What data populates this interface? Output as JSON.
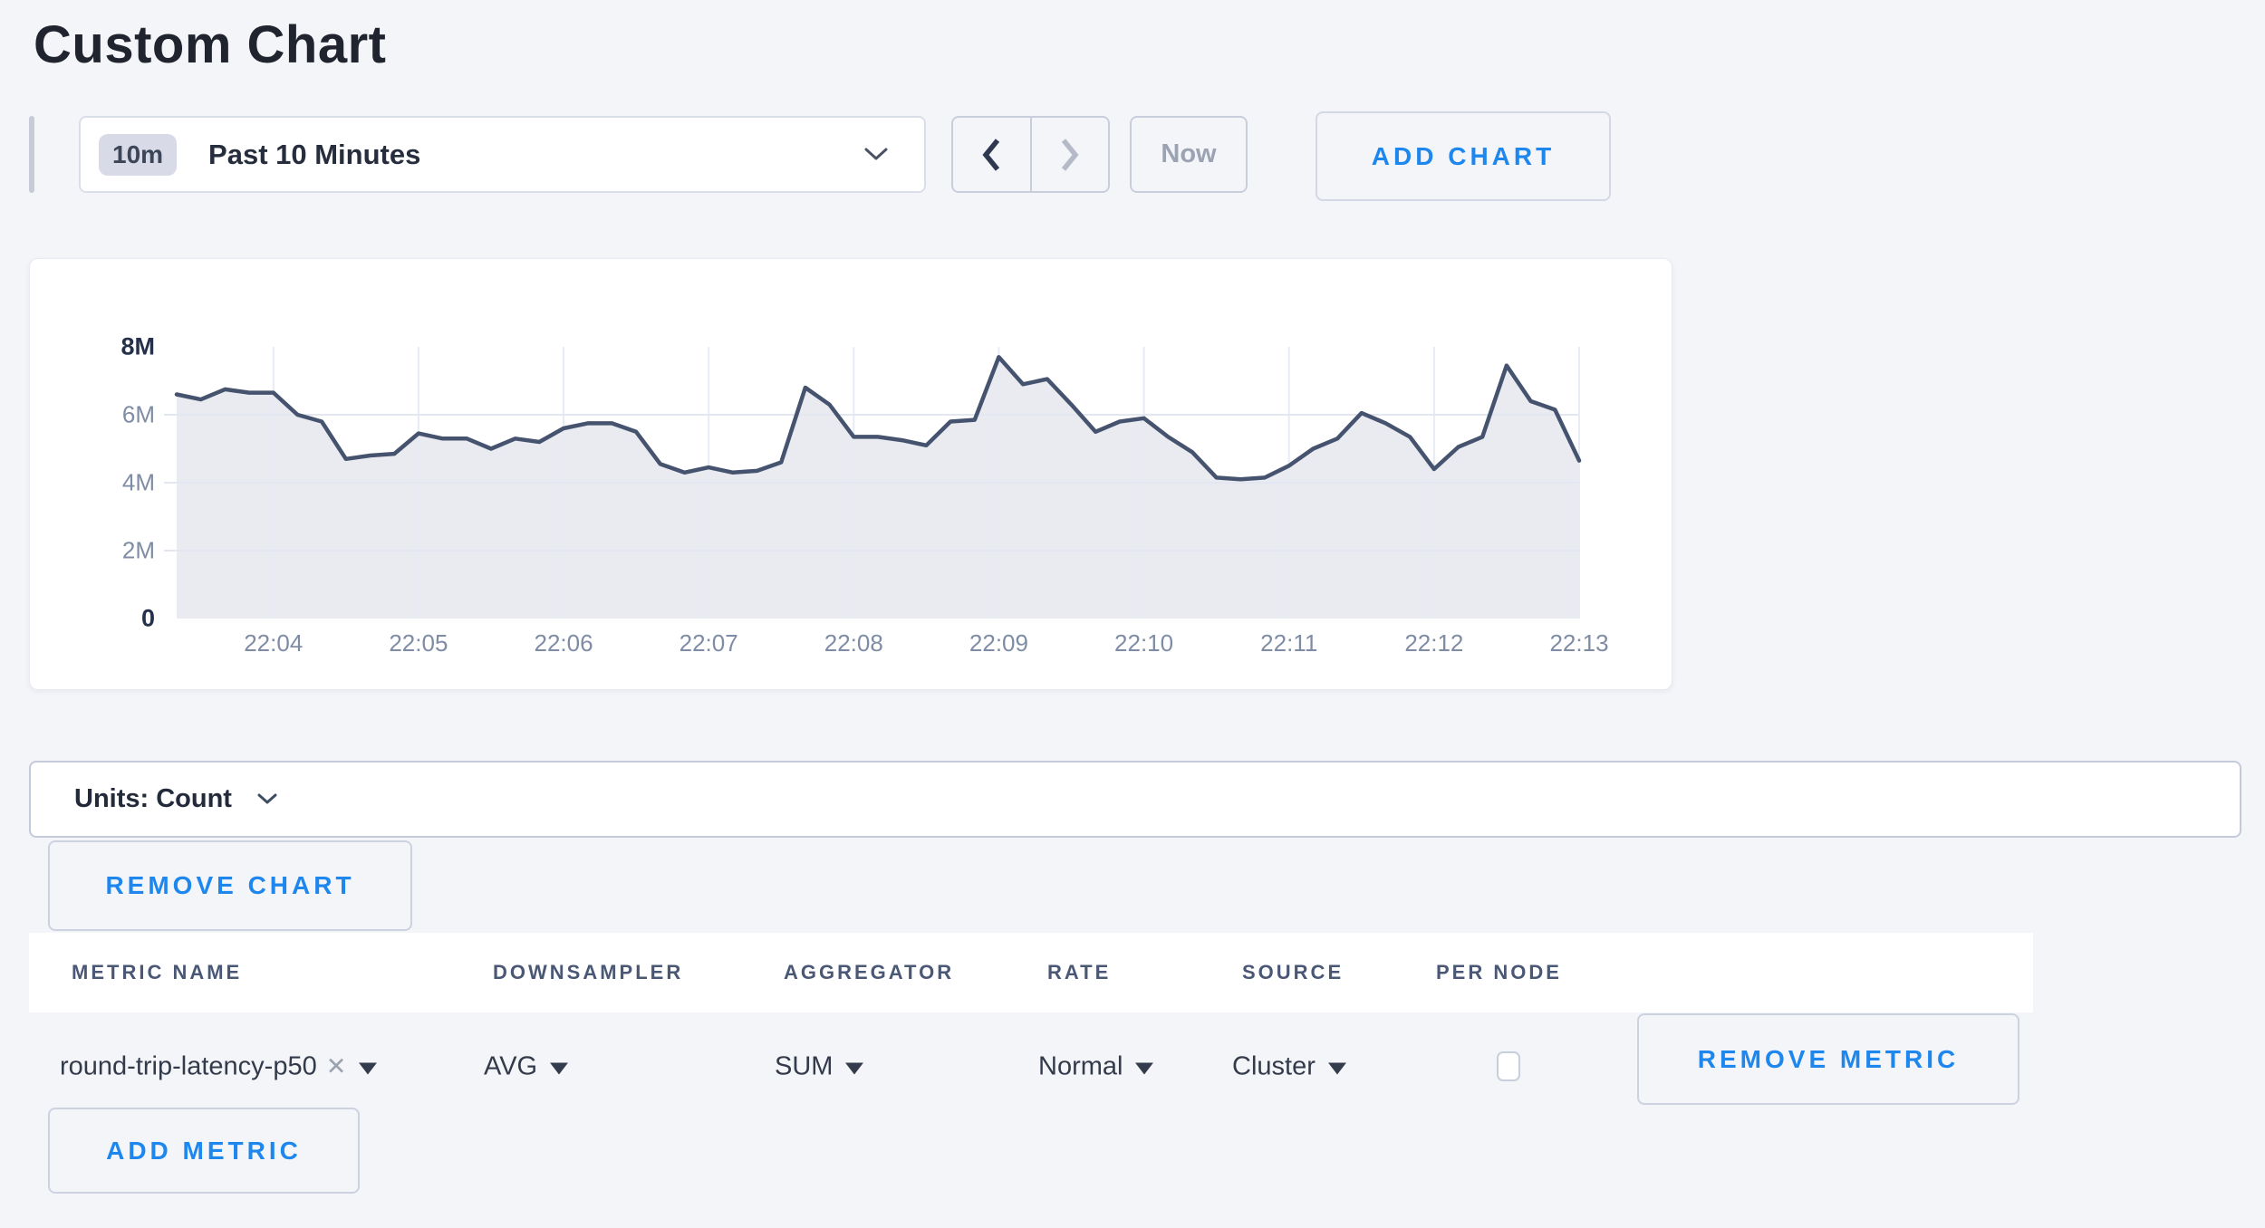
{
  "header": {
    "title": "Custom Chart"
  },
  "toolbar": {
    "time_window": {
      "badge": "10m",
      "label": "Past 10 Minutes"
    },
    "now_label": "Now",
    "add_chart_label": "ADD CHART"
  },
  "units_bar": {
    "label": "Units: Count"
  },
  "buttons": {
    "remove_chart": "REMOVE CHART",
    "remove_metric": "REMOVE METRIC",
    "add_metric": "ADD METRIC"
  },
  "metrics_table": {
    "columns": [
      "METRIC NAME",
      "DOWNSAMPLER",
      "AGGREGATOR",
      "RATE",
      "SOURCE",
      "PER NODE"
    ],
    "rows": [
      {
        "metric_name": "round-trip-latency-p50",
        "remove_glyph": "✕",
        "downsampler": "AVG",
        "aggregator": "SUM",
        "rate": "Normal",
        "source": "Cluster",
        "per_node_checked": false
      }
    ]
  },
  "chart_data": {
    "type": "area",
    "title": "",
    "xlabel": "",
    "ylabel": "",
    "unit": "Count",
    "y_max_millions": 8,
    "ylim": [
      0,
      8000000
    ],
    "grid": true,
    "x_tick_labels": [
      "22:04",
      "22:05",
      "22:06",
      "22:07",
      "22:08",
      "22:09",
      "22:10",
      "22:11",
      "22:12",
      "22:13"
    ],
    "x_tick_indices": [
      4,
      10,
      16,
      22,
      28,
      34,
      40,
      46,
      52,
      58
    ],
    "y_tick_labels": [
      {
        "label": "8M",
        "value": 8,
        "bold": true
      },
      {
        "label": "6M",
        "value": 6,
        "bold": false
      },
      {
        "label": "4M",
        "value": 4,
        "bold": false
      },
      {
        "label": "2M",
        "value": 2,
        "bold": false
      },
      {
        "label": "0",
        "value": 0,
        "bold": true
      }
    ],
    "y_gridlines_millions": [
      6,
      4,
      2
    ],
    "sample_interval_seconds": 10,
    "values_millions": [
      6.6,
      6.45,
      6.75,
      6.65,
      6.65,
      6.0,
      5.8,
      4.7,
      4.8,
      4.85,
      5.45,
      5.3,
      5.3,
      5.0,
      5.3,
      5.2,
      5.6,
      5.75,
      5.75,
      5.5,
      4.55,
      4.3,
      4.45,
      4.3,
      4.35,
      4.6,
      6.8,
      6.3,
      5.35,
      5.35,
      5.25,
      5.1,
      5.8,
      5.85,
      7.7,
      6.9,
      7.05,
      6.3,
      5.5,
      5.8,
      5.9,
      5.35,
      4.9,
      4.15,
      4.1,
      4.15,
      4.5,
      5.0,
      5.3,
      6.05,
      5.75,
      5.35,
      4.4,
      5.05,
      5.35,
      7.45,
      6.4,
      6.15,
      4.65
    ],
    "line_color": "#46536e",
    "fill_color": "#e9ebf1",
    "vgrid_color": "#e7ebf4",
    "hgrid_color": "#e2e7f1",
    "legend": "none"
  },
  "colors": {
    "page_bg": "#f4f5f9",
    "accent_blue": "#1d87ee",
    "card_bg": "#ffffff",
    "border": "#c9cedd",
    "dark_text": "#232a3a",
    "muted_text": "#7e8ca5"
  }
}
